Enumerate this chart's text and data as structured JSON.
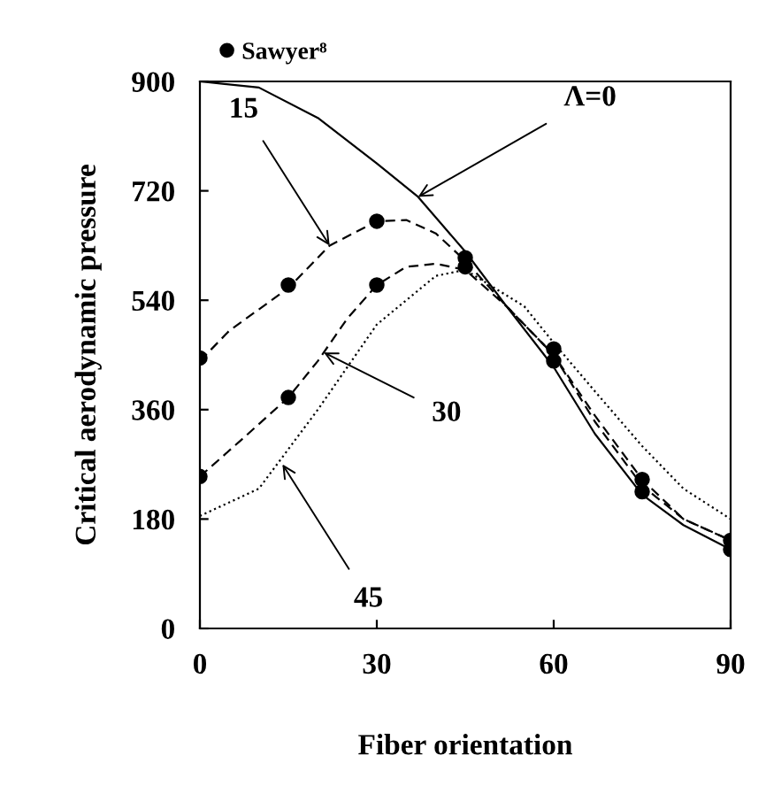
{
  "chart_data": {
    "type": "line",
    "xlabel": "Fiber orientation",
    "ylabel": "Critical aerodynamic pressure",
    "xlim": [
      0,
      90
    ],
    "ylim": [
      0,
      900
    ],
    "xticks": [
      0,
      30,
      60,
      90
    ],
    "yticks": [
      0,
      180,
      360,
      540,
      720,
      900
    ],
    "grid": false,
    "legend": "top left",
    "series": [
      {
        "color": "#000000",
        "line_style": "solid",
        "x": [
          0,
          10,
          20,
          30,
          37,
          45,
          52,
          60,
          67,
          75,
          82,
          90
        ],
        "values": [
          900,
          890,
          840,
          765,
          710,
          620,
          530,
          430,
          320,
          220,
          170,
          130
        ]
      },
      {
        "color": "#000000",
        "line_style": "dashed",
        "x": [
          0,
          5,
          15,
          22,
          30,
          35,
          40,
          45,
          52,
          60,
          67,
          75,
          82,
          90
        ],
        "values": [
          440,
          490,
          560,
          630,
          670,
          672,
          650,
          605,
          530,
          450,
          340,
          235,
          180,
          145
        ]
      },
      {
        "color": "#000000",
        "line_style": "dashed",
        "x": [
          0,
          7,
          15,
          20,
          25,
          30,
          35,
          40,
          45,
          52,
          60,
          67,
          75,
          82,
          90
        ],
        "values": [
          250,
          310,
          380,
          440,
          510,
          565,
          595,
          600,
          590,
          530,
          450,
          350,
          245,
          180,
          145
        ]
      },
      {
        "color": "#000000",
        "line_style": "dotted",
        "x": [
          0,
          10,
          20,
          30,
          40,
          45,
          55,
          60,
          67,
          75,
          82,
          90
        ],
        "values": [
          185,
          230,
          360,
          500,
          580,
          590,
          530,
          470,
          390,
          300,
          230,
          180
        ]
      },
      {
        "type": "scatter",
        "name": "Sawyer⁸",
        "color": "#000000",
        "marker": "circle",
        "x": [
          0,
          15,
          30,
          0,
          15,
          30,
          45,
          45,
          60,
          60,
          75,
          75,
          90,
          90
        ],
        "values": [
          445,
          565,
          670,
          250,
          380,
          565,
          610,
          595,
          460,
          440,
          245,
          225,
          145,
          130
        ]
      }
    ],
    "annotations": [
      {
        "text": "Λ=0",
        "x": 37,
        "y": 710
      },
      {
        "text": "15",
        "x": 22,
        "y": 630
      },
      {
        "text": "30",
        "x": 21,
        "y": 454
      },
      {
        "text": "45",
        "x": 14,
        "y": 270
      }
    ]
  }
}
